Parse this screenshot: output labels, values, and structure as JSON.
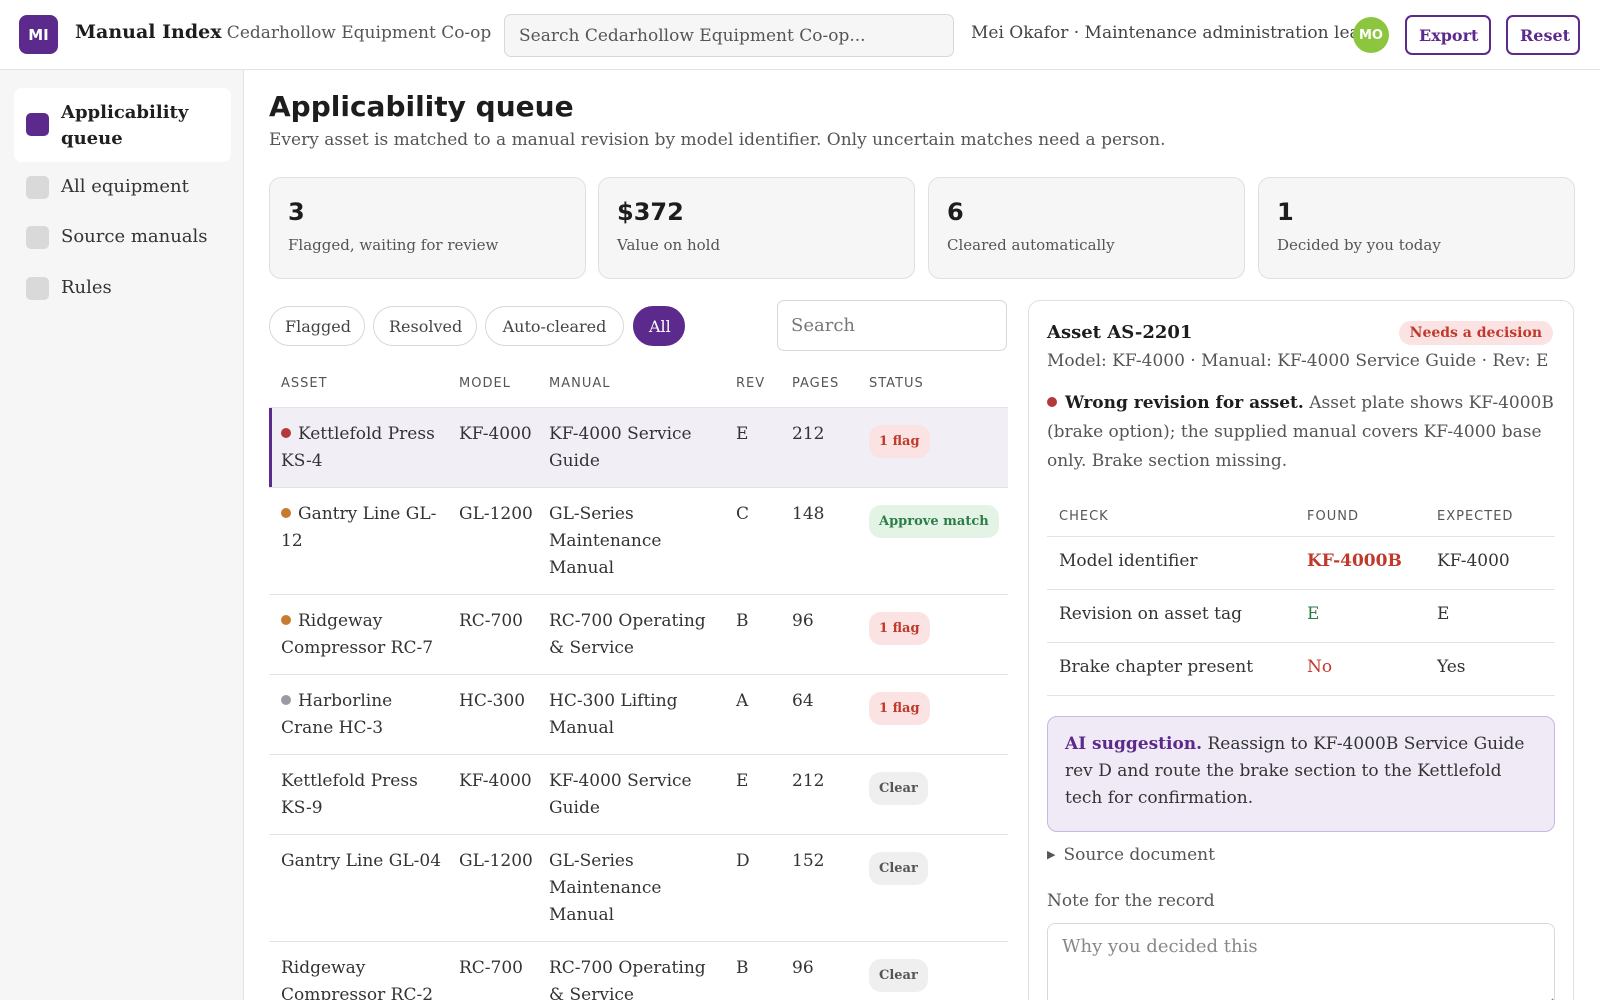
{
  "app": {
    "logo_text": "MI",
    "title": "Manual Index",
    "org": "· Cedarhollow Equipment Co-op",
    "search_placeholder": "Search Cedarhollow Equipment Co-op...",
    "user_line": "Mei Okafor · Maintenance administration lead",
    "avatar_initials": "MO",
    "export_label": "Export",
    "reset_label": "Reset"
  },
  "sidebar": {
    "items": [
      {
        "label": "Applicability queue",
        "active": true
      },
      {
        "label": "All equipment",
        "active": false
      },
      {
        "label": "Source manuals",
        "active": false
      },
      {
        "label": "Rules",
        "active": false
      }
    ]
  },
  "page": {
    "title": "Applicability queue",
    "subtitle": "Every asset is matched to a manual revision by model identifier. Only uncertain matches need a person."
  },
  "stats": [
    {
      "value": "3",
      "label": "Flagged, waiting for review"
    },
    {
      "value": "$372",
      "label": "Value on hold"
    },
    {
      "value": "6",
      "label": "Cleared automatically"
    },
    {
      "value": "1",
      "label": "Decided by you today"
    }
  ],
  "filters": {
    "chips": [
      "Flagged",
      "Resolved",
      "Auto-cleared",
      "All"
    ],
    "active": "All",
    "search_placeholder": "Search"
  },
  "table": {
    "headers": [
      "ASSET",
      "MODEL",
      "MANUAL",
      "REV",
      "PAGES",
      "STATUS"
    ],
    "rows": [
      {
        "asset": "Kettlefold Press KS-4",
        "dot": "#b23a3a",
        "model": "KF-4000",
        "manual": "KF-4000 Service Guide",
        "rev": "E",
        "pages": "212",
        "status": "1 flag",
        "status_type": "flag",
        "selected": true
      },
      {
        "asset": "Gantry Line GL-12",
        "dot": "#c77b30",
        "model": "GL-1200",
        "manual": "GL-Series Maintenance Manual",
        "rev": "C",
        "pages": "148",
        "status": "Approve match",
        "status_type": "approve",
        "selected": false
      },
      {
        "asset": "Ridgeway Compressor RC-7",
        "dot": "#c77b30",
        "model": "RC-700",
        "manual": "RC-700 Operating & Service",
        "rev": "B",
        "pages": "96",
        "status": "1 flag",
        "status_type": "flag",
        "selected": false
      },
      {
        "asset": "Harborline Crane HC-3",
        "dot": "#9a9aa5",
        "model": "HC-300",
        "manual": "HC-300 Lifting Manual",
        "rev": "A",
        "pages": "64",
        "status": "1 flag",
        "status_type": "flag",
        "selected": false
      },
      {
        "asset": "Kettlefold Press KS-9",
        "dot": "",
        "model": "KF-4000",
        "manual": "KF-4000 Service Guide",
        "rev": "E",
        "pages": "212",
        "status": "Clear",
        "status_type": "clear",
        "selected": false
      },
      {
        "asset": "Gantry Line GL-04",
        "dot": "",
        "model": "GL-1200",
        "manual": "GL-Series Maintenance Manual",
        "rev": "D",
        "pages": "152",
        "status": "Clear",
        "status_type": "clear",
        "selected": false
      },
      {
        "asset": "Ridgeway Compressor RC-2",
        "dot": "",
        "model": "RC-700",
        "manual": "RC-700 Operating & Service",
        "rev": "B",
        "pages": "96",
        "status": "Clear",
        "status_type": "clear",
        "selected": false
      }
    ]
  },
  "detail": {
    "title": "Asset AS-2201",
    "badge": "Needs a decision",
    "meta": "Model: KF-4000 · Manual: KF-4000 Service Guide · Rev: E",
    "issue_title": "Wrong revision for asset.",
    "issue_text": "Asset plate shows KF-4000B (brake option); the supplied manual covers KF-4000 base only. Brake section missing.",
    "checks_headers": [
      "CHECK",
      "FOUND",
      "EXPECTED"
    ],
    "checks": [
      {
        "check": "Model identifier",
        "found": "KF-4000B",
        "found_state": "bad-bold",
        "expected": "KF-4000"
      },
      {
        "check": "Revision on asset tag",
        "found": "E",
        "found_state": "ok",
        "expected": "E"
      },
      {
        "check": "Brake chapter present",
        "found": "No",
        "found_state": "bad",
        "expected": "Yes"
      }
    ],
    "ai_title": "AI suggestion.",
    "ai_text": "Reassign to KF-4000B Service Guide rev D and route the brake section to the Kettlefold tech for confirmation.",
    "source_doc": "Source document",
    "note_label": "Note for the record",
    "note_placeholder": "Why you decided this"
  },
  "colors": {
    "accent": "#5b2a8c",
    "flag_red": "#c0392b",
    "ok_green": "#2e7d46",
    "avatar_green": "#8cc63f"
  }
}
